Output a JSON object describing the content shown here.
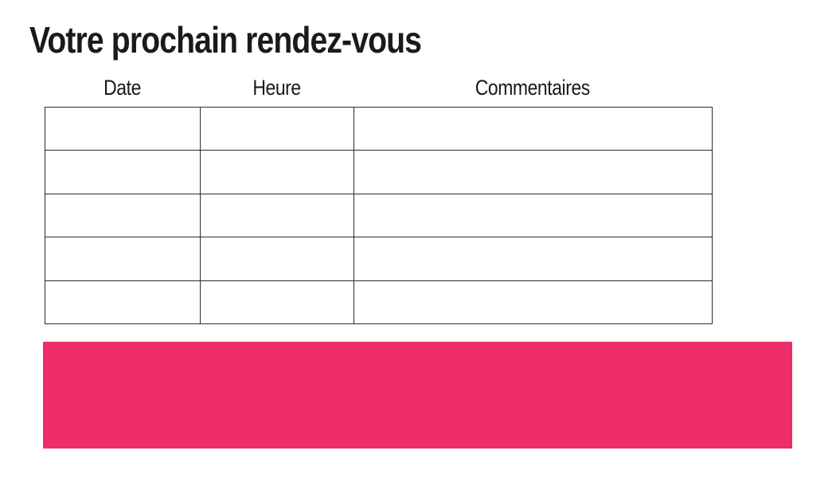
{
  "title": "Votre prochain rendez-vous",
  "table": {
    "headers": [
      "Date",
      "Heure",
      "Commentaires"
    ],
    "rows": [
      [
        "",
        "",
        ""
      ],
      [
        "",
        "",
        ""
      ],
      [
        "",
        "",
        ""
      ],
      [
        "",
        "",
        ""
      ],
      [
        "",
        "",
        ""
      ]
    ]
  },
  "banner": {
    "color": "#ED2D67"
  },
  "colors": {
    "text": "#1A1A1A",
    "border": "#2B2B2B",
    "background": "#FFFFFF"
  }
}
